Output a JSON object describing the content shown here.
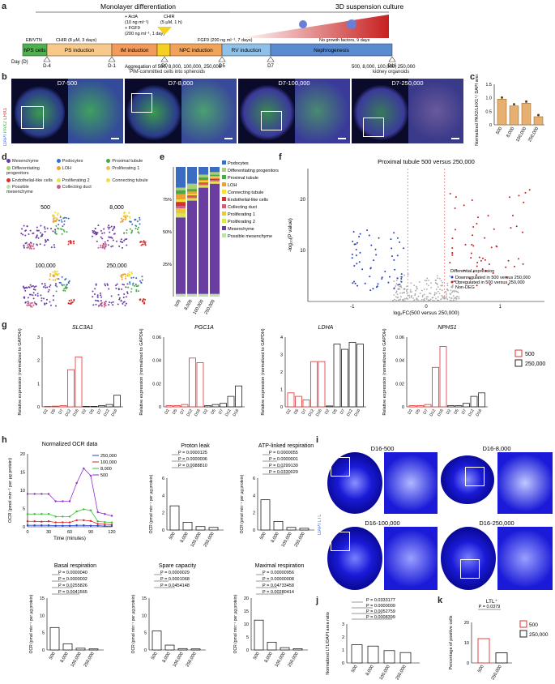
{
  "panels": {
    "a": "a",
    "b": "b",
    "c": "c",
    "d": "d",
    "e": "e",
    "f": "f",
    "g": "g",
    "h": "h",
    "i": "i",
    "j": "j",
    "k": "k"
  },
  "timeline": {
    "phase1": "Monolayer differentiation",
    "phase2": "3D suspension culture",
    "actA": "+ ActA",
    "actA_conc": "(10 ng ml⁻¹)",
    "fgf9": "+ FGF9",
    "fgf9_conc": "(200 ng ml⁻¹, 1 day)",
    "chir_top": "CHIR",
    "chir_top_conc": "(5 μM, 1 h)",
    "eb": "EB/VTN",
    "chir_label": "CHIR (8 μM, 3 days)",
    "fgf9_7": "FGF9 (200 ng ml⁻¹, 7 days)",
    "nogf": "No growth factors, 9 days",
    "stages": [
      "hPS cells",
      "PS induction",
      "IM induction",
      "NPC induction",
      "RV induction",
      "Nephrogenesis"
    ],
    "day": "Day (D)",
    "ticks": [
      "D-4",
      "D-1",
      "D0",
      "D5",
      "D7",
      "D16"
    ],
    "agg1": "Aggregation of 500, 8,000, 100,000, 250,000",
    "agg2": "PIM-committed cells into spheroids",
    "end1": "500, 8,000, 100,000, 250,000",
    "end2": "kidney organoids"
  },
  "b": {
    "stain": [
      "DAPI",
      "PAX2",
      "LHX1"
    ],
    "labels": [
      "D7-500",
      "D7-8,000",
      "D7-100,000",
      "D7-250,000"
    ]
  },
  "c": {
    "ylabel": "Normalized PAX2/LHX1⁺/ DAPI area ratio",
    "cats": [
      "500",
      "8,000",
      "100,000",
      "250,000"
    ],
    "values": [
      0.95,
      0.7,
      0.8,
      0.3
    ],
    "yticks": [
      "0",
      "0.5",
      "1.0",
      "1.5"
    ]
  },
  "d": {
    "legend": [
      "Mesenchyme",
      "Podocytes",
      "Proximal tubule",
      "Differentiating progenitors",
      "LOH",
      "Proliferating 1",
      "Endothelial-like cells",
      "Proliferating 2",
      "Connecting tubule",
      "Possible mesenchyme",
      "Collecting duct"
    ],
    "colors": [
      "#6a3da0",
      "#3b6cc4",
      "#4aa84a",
      "#a8d070",
      "#f0a030",
      "#e8c840",
      "#d83030",
      "#d8e850",
      "#f0e040",
      "#bfe0b0",
      "#c86080"
    ],
    "labels": [
      "500",
      "8,000",
      "100,000",
      "250,000"
    ]
  },
  "e": {
    "legend": [
      "Podocytes",
      "Differentiating progenitors",
      "Proximal tubule",
      "LOH",
      "Connecting tubule",
      "Endothelial-like cells",
      "Collecting duct",
      "Proliferating 1",
      "Proliferating 2",
      "Mesenchyme",
      "Possible mesenchyme"
    ],
    "yticks": [
      "25%",
      "50%",
      "75%"
    ],
    "cats": [
      "500",
      "8,000",
      "100,000",
      "250,000"
    ]
  },
  "f": {
    "title": "Proximal tubule 500  versus 250,000",
    "ylabel": "-log₁₀(P value)",
    "xlabel": "log₂FC(500 versus 250,000)",
    "xticks": [
      "-1",
      "0",
      "1"
    ],
    "yticks": [
      "10",
      "20"
    ],
    "legend_title": "Differential expression",
    "legend": [
      "Downregulated in 500 versus 250,000",
      "Upregulated in 500 versus 250,000",
      "Non-DEG"
    ]
  },
  "g": {
    "genes": [
      "SLC3A1",
      "PGC1A",
      "LDHA",
      "NPHS1"
    ],
    "ylabel": "Relative expression (normalized to GAPDH)",
    "days": [
      "D2",
      "D5",
      "D7",
      "D12",
      "D16"
    ],
    "legend": [
      "500",
      "250,000"
    ],
    "c500": "#e03030",
    "c250": "#202020",
    "yticks": [
      [
        "0",
        "1",
        "2",
        "3"
      ],
      [
        "0",
        "0.02",
        "0.04",
        "0.06"
      ],
      [
        "0",
        "1",
        "2",
        "3",
        "4"
      ],
      [
        "0",
        "0.02",
        "0.04",
        "0.06"
      ]
    ],
    "vals500": [
      [
        0.02,
        0.03,
        0.05,
        1.6,
        2.15
      ],
      [
        0.001,
        0.001,
        0.002,
        0.042,
        0.038
      ],
      [
        0.8,
        0.6,
        0.4,
        2.6,
        2.6
      ],
      [
        0.001,
        0.001,
        0.002,
        0.034,
        0.052
      ]
    ],
    "vals250": [
      [
        0.02,
        0.02,
        0.05,
        0.1,
        0.5
      ],
      [
        0.001,
        0.002,
        0.003,
        0.009,
        0.018
      ],
      [
        0.05,
        3.6,
        3.3,
        3.7,
        3.6
      ],
      [
        0.001,
        0.001,
        0.003,
        0.009,
        0.012
      ]
    ]
  },
  "h": {
    "ocr_title": "Normalized OCR data",
    "ocr_ylabel": "OCR (pmol min⁻¹ per μg protein)",
    "xlabel": "Time (minutes)",
    "xticks": [
      "0",
      "30",
      "60",
      "90",
      "120"
    ],
    "yticks": [
      "0",
      "5",
      "10",
      "15",
      "20"
    ],
    "series": [
      "250,000",
      "100,000",
      "8,000",
      "500"
    ],
    "series_colors": [
      "#2040d0",
      "#e02020",
      "#30c030",
      "#9030d0"
    ],
    "bars": [
      {
        "title": "Proton leak",
        "p": [
          "P = 0.0000125",
          "P = 0.0000006",
          "P = 0.0088810"
        ],
        "vals": [
          2.8,
          0.9,
          0.4,
          0.3
        ],
        "yticks": [
          "0",
          "2",
          "4",
          "6"
        ]
      },
      {
        "title": "ATP-linked respiration",
        "p": [
          "P = 0.0000055",
          "P = 0.0000001",
          "P = 0.0299130",
          "P = 0.0330029"
        ],
        "vals": [
          3.5,
          1.0,
          0.3,
          0.2
        ],
        "yticks": [
          "0",
          "2",
          "4",
          "6"
        ]
      },
      {
        "title": "Basal respiration",
        "p": [
          "P = 0.0000040",
          "P = 0.0000002",
          "P = 0.0255826",
          "P = 0.0041565"
        ],
        "vals": [
          6.5,
          1.8,
          0.5,
          0.3
        ],
        "yticks": [
          "0",
          "5",
          "10",
          "15"
        ]
      },
      {
        "title": "Spare capacity",
        "p": [
          "P = 0.0000029",
          "P = 0.0001068",
          "P = 0.0454148"
        ],
        "vals": [
          5.5,
          1.4,
          0.4,
          0.3
        ],
        "yticks": [
          "0",
          "5",
          "10",
          "15"
        ]
      },
      {
        "title": "Maximal respiration",
        "p": [
          "P = 0.00000956",
          "P = 0.00000008",
          "P = 0.04733458",
          "P = 0.00280414"
        ],
        "vals": [
          11.5,
          3.0,
          0.9,
          0.5
        ],
        "yticks": [
          "0",
          "5",
          "10",
          "15",
          "20"
        ]
      }
    ],
    "cats": [
      "500",
      "8,000",
      "100,000",
      "250,000"
    ]
  },
  "i": {
    "stain": [
      "DAPI",
      "LTL"
    ],
    "labels": [
      "D16-500",
      "D16-8,000",
      "D16-100,000",
      "D16-250,000"
    ]
  },
  "j": {
    "ylabel": "Normalized LTL/DAPI area ratio",
    "p": [
      "P = 0.0333177",
      "P = 0.0000009",
      "P = 0.0052759",
      "P = 0.0008399"
    ],
    "vals": [
      1.4,
      1.3,
      0.95,
      0.8
    ],
    "cats": [
      "500",
      "8,000",
      "100,000",
      "250,000"
    ],
    "yticks": [
      "0",
      "1",
      "2",
      "3"
    ]
  },
  "k": {
    "title": "LTL⁺",
    "p": "P = 0.0379",
    "ylabel": "Percentage of positive cells",
    "vals": [
      12,
      5
    ],
    "cats": [
      "500",
      "250,000"
    ],
    "legend": [
      "500",
      "250,000"
    ],
    "yticks": [
      "0",
      "10",
      "20"
    ]
  }
}
